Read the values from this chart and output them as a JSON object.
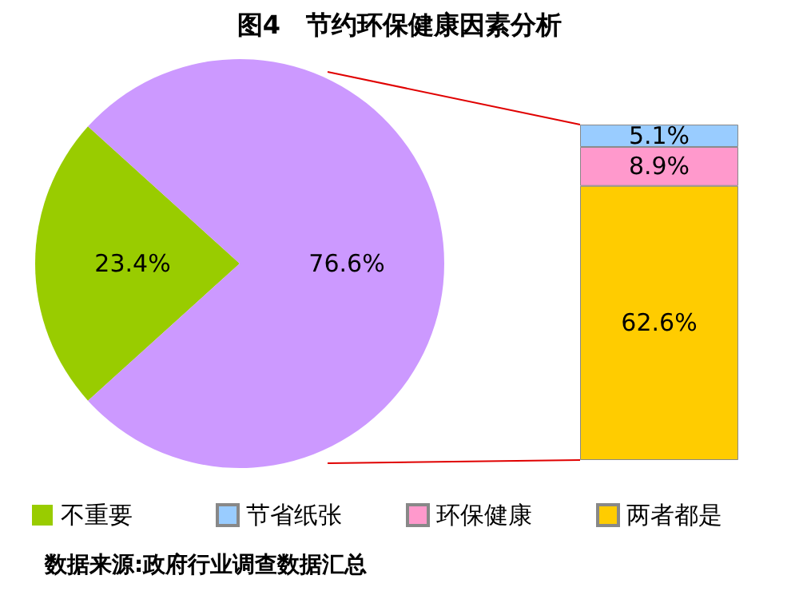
{
  "chart_data": [
    {
      "type": "pie",
      "title": "图4　节约环保健康因素分析",
      "categories": [
        "不重要",
        null
      ],
      "values": [
        23.4,
        76.6
      ],
      "colors": [
        "#99cc00",
        "#cc99ff"
      ],
      "value_labels": [
        "23.4%",
        "76.6%"
      ],
      "legend": "bottom left"
    },
    {
      "type": "bar",
      "stacked": true,
      "categories": [
        null
      ],
      "legend": "bottom",
      "annotations": [
        "数据来源:政府行业调查数据汇总"
      ],
      "series": [
        {
          "name": "两者都是",
          "color": "#ffcc00",
          "values": [
            62.6
          ],
          "value_labels": [
            "62.6%"
          ]
        },
        {
          "name": "环保健康",
          "color": "#ff99cc",
          "values": [
            8.9
          ],
          "value_labels": [
            "8.9%"
          ]
        },
        {
          "name": "节省纸张",
          "color": "#99ccff",
          "values": [
            5.1
          ],
          "value_labels": [
            "5.1%"
          ]
        }
      ]
    }
  ]
}
